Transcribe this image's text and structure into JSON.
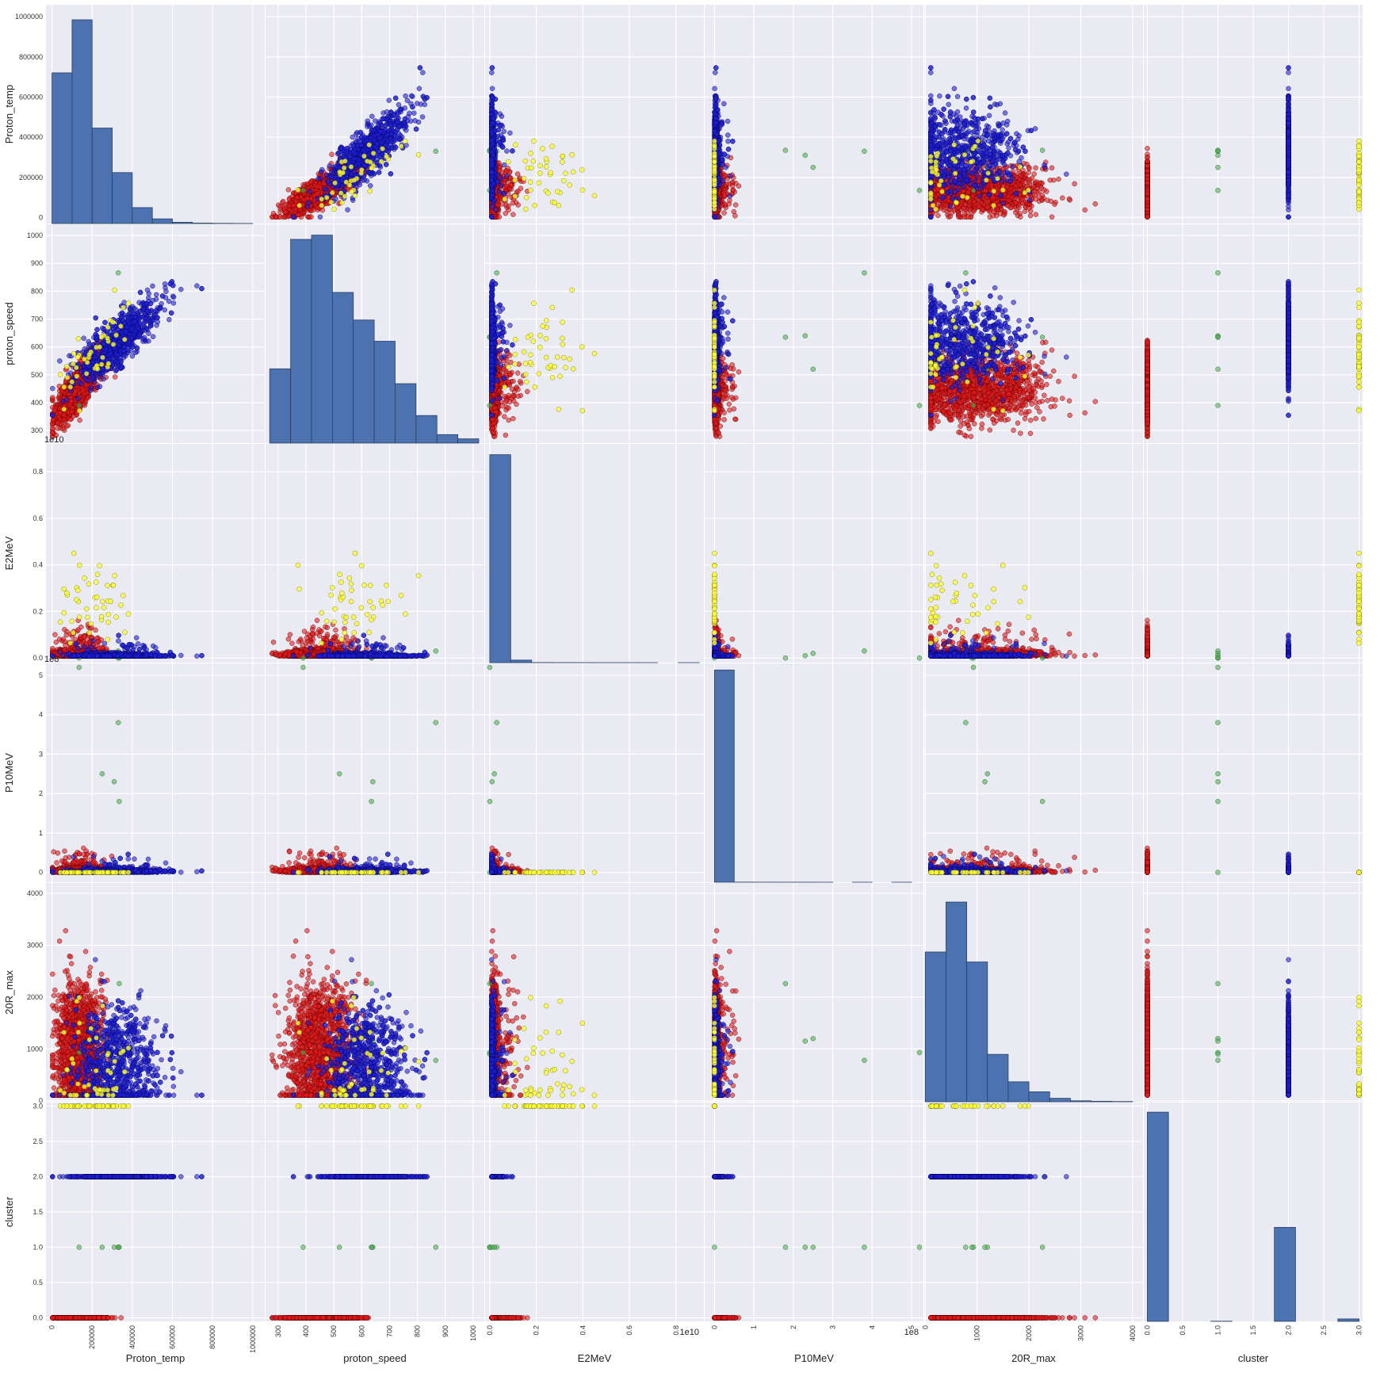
{
  "chart_data": {
    "type": "scatter",
    "title": "",
    "variables": [
      {
        "name": "Proton_temp",
        "range": [
          -30000,
          1060000
        ],
        "ticks": [
          0,
          200000,
          400000,
          600000,
          800000,
          1000000
        ],
        "tick_labels": [
          "0",
          "200000",
          "400000",
          "600000",
          "800000",
          "1000000"
        ],
        "offset_label": ""
      },
      {
        "name": "proton_speed",
        "range": [
          255,
          1040
        ],
        "ticks": [
          300,
          400,
          500,
          600,
          700,
          800,
          900,
          1000
        ],
        "tick_labels": [
          "300",
          "400",
          "500",
          "600",
          "700",
          "800",
          "900",
          "1000"
        ],
        "offset_label": ""
      },
      {
        "name": "E2MeV",
        "range": [
          -0.02,
          0.92
        ],
        "ticks": [
          0.0,
          0.2,
          0.4,
          0.6,
          0.8
        ],
        "tick_labels": [
          "0.0",
          "0.2",
          "0.4",
          "0.6",
          "0.8"
        ],
        "offset_label": "1e10"
      },
      {
        "name": "P10MeV",
        "range": [
          -0.25,
          5.3
        ],
        "ticks": [
          0,
          1,
          2,
          3,
          4,
          5
        ],
        "tick_labels": [
          "0",
          "1",
          "2",
          "3",
          "4",
          "5"
        ],
        "offset_label": "1e8"
      },
      {
        "name": "20R_max",
        "range": [
          -20,
          4200
        ],
        "ticks": [
          0,
          1000,
          2000,
          3000,
          4000
        ],
        "tick_labels": [
          "0",
          "1000",
          "2000",
          "3000",
          "4000"
        ],
        "offset_label": ""
      },
      {
        "name": "cluster",
        "range": [
          -0.05,
          3.05
        ],
        "ticks": [
          0.0,
          0.5,
          1.0,
          1.5,
          2.0,
          2.5,
          3.0
        ],
        "tick_labels": [
          "0.0",
          "0.5",
          "1.0",
          "1.5",
          "2.0",
          "2.5",
          "3.0"
        ],
        "offset_label": ""
      }
    ],
    "histograms": {
      "Proton_temp": {
        "bins": [
          [
            0,
            100000,
            710
          ],
          [
            100000,
            200000,
            960
          ],
          [
            200000,
            300000,
            450
          ],
          [
            300000,
            400000,
            240
          ],
          [
            400000,
            500000,
            75
          ],
          [
            500000,
            600000,
            22
          ],
          [
            600000,
            700000,
            6
          ],
          [
            700000,
            800000,
            2
          ],
          [
            800000,
            900000,
            1
          ],
          [
            900000,
            1000000,
            0.5
          ]
        ],
        "max": 1000
      },
      "proton_speed": {
        "bins": [
          [
            270,
            345,
            350
          ],
          [
            345,
            420,
            960
          ],
          [
            420,
            495,
            980
          ],
          [
            495,
            570,
            710
          ],
          [
            570,
            645,
            580
          ],
          [
            645,
            720,
            480
          ],
          [
            720,
            795,
            280
          ],
          [
            795,
            870,
            130
          ],
          [
            870,
            945,
            40
          ],
          [
            945,
            1020,
            20
          ]
        ],
        "max": 1000
      },
      "E2MeV": {
        "bins": [
          [
            0.0,
            0.09,
            980
          ],
          [
            0.09,
            0.18,
            12
          ],
          [
            0.18,
            0.27,
            0.6
          ],
          [
            0.27,
            0.36,
            0.4
          ],
          [
            0.36,
            0.45,
            0.3
          ],
          [
            0.45,
            0.54,
            0.2
          ],
          [
            0.54,
            0.63,
            0.2
          ],
          [
            0.63,
            0.72,
            0.1
          ],
          [
            0.72,
            0.81,
            0
          ],
          [
            0.81,
            0.9,
            0.1
          ]
        ],
        "max": 1000
      },
      "P10MeV": {
        "bins": [
          [
            0,
            0.5,
            1000
          ],
          [
            0.5,
            1.0,
            0.5
          ],
          [
            1.0,
            1.5,
            0.3
          ],
          [
            1.5,
            2.0,
            0.2
          ],
          [
            2.0,
            2.5,
            0.2
          ],
          [
            2.5,
            3.0,
            0.1
          ],
          [
            3.0,
            3.5,
            0
          ],
          [
            3.5,
            4.0,
            0.1
          ],
          [
            4.0,
            4.5,
            0
          ],
          [
            4.5,
            5.0,
            0.1
          ]
        ],
        "max": 1000
      },
      "20R_max": {
        "bins": [
          [
            0,
            400,
            600
          ],
          [
            400,
            800,
            800
          ],
          [
            800,
            1200,
            560
          ],
          [
            1200,
            1600,
            190
          ],
          [
            1600,
            2000,
            80
          ],
          [
            2000,
            2400,
            40
          ],
          [
            2400,
            2800,
            14
          ],
          [
            2800,
            3200,
            4
          ],
          [
            3200,
            3600,
            2
          ],
          [
            3600,
            4000,
            1
          ]
        ],
        "max": 850
      },
      "cluster": {
        "bins": [
          [
            0.0,
            0.3,
            690
          ],
          [
            0.3,
            0.6,
            0
          ],
          [
            0.6,
            0.9,
            0
          ],
          [
            0.9,
            1.2,
            0.5
          ],
          [
            1.2,
            1.5,
            0
          ],
          [
            1.5,
            1.8,
            0
          ],
          [
            1.8,
            2.1,
            310
          ],
          [
            2.1,
            2.4,
            0
          ],
          [
            2.4,
            2.7,
            0
          ],
          [
            2.7,
            3.0,
            8
          ]
        ],
        "max": 700
      }
    },
    "clusters": [
      {
        "cluster": 0,
        "color": "#e41a1c",
        "edge": "#550000",
        "alpha": 0.6,
        "n": 1400,
        "center": [
          130000,
          450,
          0.015,
          0.03,
          950
        ],
        "spread": [
          60000,
          65,
          0.02,
          0.08,
          650
        ]
      },
      {
        "cluster": 1,
        "color": "#4caf50",
        "edge": "#1b5e20",
        "alpha": 0.6,
        "n": 6,
        "points": [
          [
            330000,
            866,
            0.03,
            3.8,
            780
          ],
          [
            250000,
            520,
            0.02,
            2.5,
            1200
          ],
          [
            310000,
            640,
            0.01,
            2.3,
            1150
          ],
          [
            335000,
            635,
            0.0,
            1.8,
            2260
          ],
          [
            135000,
            390,
            0.0,
            5.2,
            930
          ],
          [
            330000,
            636,
            0.0,
            0.0,
            900
          ]
        ]
      },
      {
        "cluster": 2,
        "color": "#1f1fd9",
        "edge": "#000050",
        "alpha": 0.6,
        "n": 900,
        "center": [
          330000,
          620,
          0.01,
          0.02,
          750
        ],
        "spread": [
          110000,
          80,
          0.012,
          0.06,
          550
        ]
      },
      {
        "cluster": 3,
        "color": "#ffff33",
        "edge": "#6b6b00",
        "alpha": 0.8,
        "n": 45,
        "center": [
          180000,
          540,
          0.22,
          0.0,
          600
        ],
        "spread": [
          90000,
          110,
          0.13,
          0.0,
          700
        ]
      }
    ]
  },
  "colors": {
    "panel": "#eaeaf2",
    "grid": "#ffffff",
    "bar": "#4c72b0",
    "bar_edge": "#2a3f66"
  }
}
